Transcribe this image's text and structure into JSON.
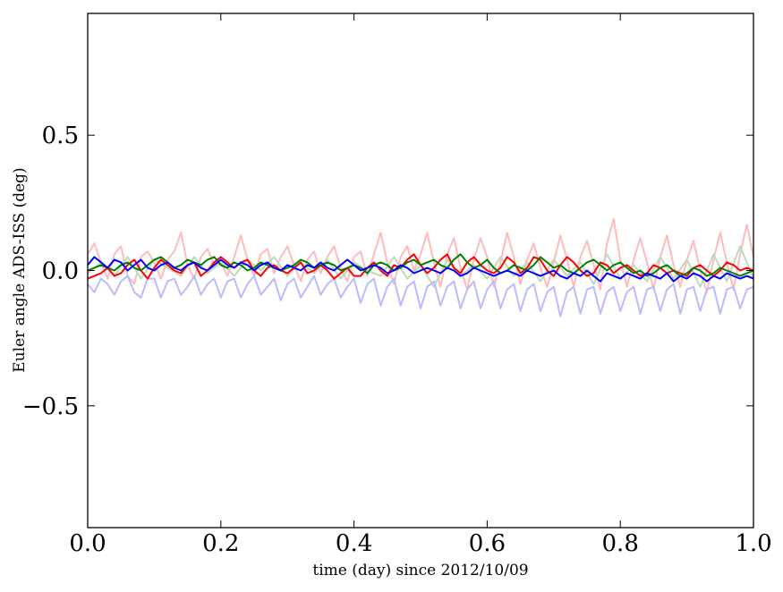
{
  "chart_data": {
    "type": "line",
    "title": "",
    "xlabel": "time (day) since 2012/10/09",
    "ylabel": "Euler angle ADS-ISS (deg)",
    "xlim": [
      0.0,
      1.0
    ],
    "ylim": [
      -0.95,
      0.95
    ],
    "x_ticks": [
      "0.0",
      "0.2",
      "0.4",
      "0.6",
      "0.8",
      "1.0"
    ],
    "y_ticks": [
      "0.5",
      "0.0",
      "−0.5"
    ],
    "grid": false,
    "legend": "none",
    "series": [
      {
        "color": "#ffbbbb",
        "opacity": 1,
        "x": [
          0.0,
          0.01,
          0.02,
          0.03,
          0.04,
          0.05,
          0.06,
          0.07,
          0.08,
          0.09,
          0.1,
          0.11,
          0.12,
          0.13,
          0.14,
          0.15,
          0.16,
          0.17,
          0.18,
          0.19,
          0.2,
          0.21,
          0.22,
          0.23,
          0.24,
          0.25,
          0.26,
          0.27,
          0.28,
          0.29,
          0.3,
          0.31,
          0.32,
          0.33,
          0.34,
          0.35,
          0.36,
          0.37,
          0.38,
          0.39,
          0.4,
          0.41,
          0.42,
          0.43,
          0.44,
          0.45,
          0.46,
          0.47,
          0.48,
          0.49,
          0.5,
          0.51,
          0.52,
          0.53,
          0.54,
          0.55,
          0.56,
          0.57,
          0.58,
          0.59,
          0.6,
          0.61,
          0.62,
          0.63,
          0.64,
          0.65,
          0.66,
          0.67,
          0.68,
          0.69,
          0.7,
          0.71,
          0.72,
          0.73,
          0.74,
          0.75,
          0.76,
          0.77,
          0.78,
          0.79,
          0.8,
          0.81,
          0.82,
          0.83,
          0.84,
          0.85,
          0.86,
          0.87,
          0.88,
          0.89,
          0.9,
          0.91,
          0.92,
          0.93,
          0.94,
          0.95,
          0.96,
          0.97,
          0.98,
          0.99,
          1.0
        ],
        "y": [
          0.06,
          0.1,
          0.03,
          -0.03,
          0.06,
          0.09,
          -0.02,
          -0.05,
          0.05,
          0.07,
          0.03,
          -0.03,
          0.04,
          0.07,
          0.14,
          0.02,
          -0.03,
          0.05,
          0.08,
          0.02,
          0.03,
          -0.02,
          0.05,
          0.13,
          0.04,
          -0.02,
          0.06,
          0.08,
          -0.01,
          0.05,
          0.09,
          0.02,
          -0.04,
          0.04,
          0.07,
          -0.01,
          0.05,
          0.09,
          0.01,
          -0.04,
          0.05,
          0.07,
          -0.02,
          0.06,
          0.14,
          0.03,
          -0.05,
          0.05,
          0.09,
          0.0,
          0.06,
          0.14,
          0.03,
          -0.06,
          0.06,
          0.12,
          0.01,
          -0.07,
          0.04,
          0.12,
          0.05,
          -0.06,
          0.03,
          0.14,
          0.05,
          -0.05,
          0.04,
          0.1,
          0.01,
          -0.06,
          0.03,
          0.13,
          0.04,
          -0.06,
          0.05,
          0.11,
          0.02,
          -0.07,
          0.1,
          0.19,
          0.04,
          -0.06,
          0.04,
          0.12,
          0.03,
          -0.07,
          0.05,
          0.13,
          0.02,
          -0.06,
          0.04,
          0.11,
          0.0,
          -0.08,
          0.04,
          0.14,
          0.03,
          -0.07,
          0.06,
          0.17,
          0.05
        ]
      },
      {
        "color": "#bbdbbb",
        "opacity": 1,
        "x": [
          0.0,
          0.02,
          0.04,
          0.06,
          0.08,
          0.1,
          0.12,
          0.14,
          0.16,
          0.18,
          0.2,
          0.22,
          0.24,
          0.26,
          0.28,
          0.3,
          0.32,
          0.34,
          0.36,
          0.38,
          0.4,
          0.42,
          0.44,
          0.46,
          0.48,
          0.5,
          0.52,
          0.54,
          0.56,
          0.58,
          0.6,
          0.62,
          0.64,
          0.66,
          0.68,
          0.7,
          0.72,
          0.74,
          0.76,
          0.78,
          0.8,
          0.82,
          0.84,
          0.86,
          0.88,
          0.9,
          0.92,
          0.94,
          0.96,
          0.98,
          1.0
        ],
        "y": [
          -0.01,
          0.03,
          -0.02,
          0.05,
          -0.03,
          0.04,
          0.01,
          -0.02,
          0.05,
          -0.01,
          0.03,
          -0.02,
          0.04,
          0.0,
          0.05,
          -0.02,
          0.03,
          -0.01,
          0.04,
          -0.03,
          0.03,
          0.0,
          -0.02,
          0.05,
          -0.03,
          0.02,
          -0.06,
          0.04,
          -0.02,
          0.02,
          -0.03,
          0.05,
          -0.02,
          0.03,
          -0.04,
          0.04,
          -0.02,
          0.03,
          -0.05,
          0.06,
          -0.03,
          0.02,
          -0.04,
          0.05,
          -0.03,
          0.04,
          -0.06,
          0.06,
          -0.04,
          0.09,
          -0.03
        ]
      },
      {
        "color": "#bbbbff",
        "opacity": 1,
        "x": [
          0.0,
          0.01,
          0.02,
          0.03,
          0.04,
          0.05,
          0.06,
          0.07,
          0.08,
          0.09,
          0.1,
          0.11,
          0.12,
          0.13,
          0.14,
          0.15,
          0.16,
          0.17,
          0.18,
          0.19,
          0.2,
          0.21,
          0.22,
          0.23,
          0.24,
          0.25,
          0.26,
          0.27,
          0.28,
          0.29,
          0.3,
          0.31,
          0.32,
          0.33,
          0.34,
          0.35,
          0.36,
          0.37,
          0.38,
          0.39,
          0.4,
          0.41,
          0.42,
          0.43,
          0.44,
          0.45,
          0.46,
          0.47,
          0.48,
          0.49,
          0.5,
          0.51,
          0.52,
          0.53,
          0.54,
          0.55,
          0.56,
          0.57,
          0.58,
          0.59,
          0.6,
          0.61,
          0.62,
          0.63,
          0.64,
          0.65,
          0.66,
          0.67,
          0.68,
          0.69,
          0.7,
          0.71,
          0.72,
          0.73,
          0.74,
          0.75,
          0.76,
          0.77,
          0.78,
          0.79,
          0.8,
          0.81,
          0.82,
          0.83,
          0.84,
          0.85,
          0.86,
          0.87,
          0.88,
          0.89,
          0.9,
          0.91,
          0.92,
          0.93,
          0.94,
          0.95,
          0.96,
          0.97,
          0.98,
          0.99,
          1.0
        ],
        "y": [
          -0.05,
          -0.08,
          -0.03,
          -0.05,
          -0.09,
          -0.04,
          -0.02,
          -0.08,
          -0.1,
          -0.03,
          -0.03,
          -0.1,
          -0.04,
          -0.03,
          -0.09,
          -0.06,
          -0.02,
          -0.09,
          -0.05,
          -0.03,
          -0.1,
          -0.04,
          -0.03,
          -0.1,
          -0.05,
          -0.02,
          -0.09,
          -0.06,
          -0.03,
          -0.11,
          -0.05,
          -0.03,
          -0.1,
          -0.06,
          -0.02,
          -0.09,
          -0.05,
          -0.03,
          -0.1,
          -0.06,
          -0.03,
          -0.12,
          -0.05,
          -0.03,
          -0.13,
          -0.06,
          -0.03,
          -0.13,
          -0.06,
          -0.04,
          -0.14,
          -0.06,
          -0.04,
          -0.13,
          -0.06,
          -0.04,
          -0.14,
          -0.07,
          -0.04,
          -0.14,
          -0.07,
          -0.04,
          -0.14,
          -0.07,
          -0.05,
          -0.15,
          -0.07,
          -0.05,
          -0.15,
          -0.08,
          -0.06,
          -0.17,
          -0.08,
          -0.06,
          -0.16,
          -0.07,
          -0.06,
          -0.16,
          -0.08,
          -0.06,
          -0.15,
          -0.08,
          -0.06,
          -0.16,
          -0.07,
          -0.06,
          -0.15,
          -0.07,
          -0.05,
          -0.16,
          -0.07,
          -0.06,
          -0.15,
          -0.07,
          -0.06,
          -0.16,
          -0.07,
          -0.06,
          -0.14,
          -0.07,
          -0.06
        ]
      },
      {
        "color": "#ff0000",
        "opacity": 1,
        "x": [
          0.0,
          0.01,
          0.02,
          0.03,
          0.04,
          0.05,
          0.06,
          0.07,
          0.08,
          0.09,
          0.1,
          0.11,
          0.12,
          0.13,
          0.14,
          0.15,
          0.16,
          0.17,
          0.18,
          0.19,
          0.2,
          0.21,
          0.22,
          0.23,
          0.24,
          0.25,
          0.26,
          0.27,
          0.28,
          0.29,
          0.3,
          0.31,
          0.32,
          0.33,
          0.34,
          0.35,
          0.36,
          0.37,
          0.38,
          0.39,
          0.4,
          0.41,
          0.42,
          0.43,
          0.44,
          0.45,
          0.46,
          0.47,
          0.48,
          0.49,
          0.5,
          0.51,
          0.52,
          0.53,
          0.54,
          0.55,
          0.56,
          0.57,
          0.58,
          0.59,
          0.6,
          0.61,
          0.62,
          0.63,
          0.64,
          0.65,
          0.66,
          0.67,
          0.68,
          0.69,
          0.7,
          0.71,
          0.72,
          0.73,
          0.74,
          0.75,
          0.76,
          0.77,
          0.78,
          0.79,
          0.8,
          0.81,
          0.82,
          0.83,
          0.84,
          0.85,
          0.86,
          0.87,
          0.88,
          0.89,
          0.9,
          0.91,
          0.92,
          0.93,
          0.94,
          0.95,
          0.96,
          0.97,
          0.98,
          0.99,
          1.0
        ],
        "y": [
          -0.03,
          -0.02,
          -0.01,
          0.01,
          -0.02,
          -0.01,
          0.02,
          0.04,
          0.0,
          -0.03,
          0.01,
          0.04,
          0.02,
          0.0,
          -0.01,
          0.02,
          0.03,
          -0.02,
          0.0,
          0.03,
          0.05,
          0.03,
          0.01,
          0.03,
          0.04,
          0.0,
          -0.02,
          0.01,
          0.02,
          0.0,
          -0.01,
          0.01,
          0.03,
          -0.01,
          0.0,
          0.02,
          0.0,
          -0.03,
          -0.01,
          0.01,
          -0.02,
          -0.02,
          0.01,
          0.03,
          0.0,
          -0.02,
          0.02,
          0.01,
          0.04,
          0.06,
          0.02,
          -0.01,
          0.01,
          0.04,
          0.06,
          0.01,
          -0.01,
          0.03,
          0.05,
          0.02,
          0.0,
          -0.01,
          0.01,
          0.05,
          0.03,
          -0.01,
          0.01,
          0.05,
          0.04,
          0.0,
          -0.02,
          0.02,
          0.05,
          0.03,
          0.0,
          -0.02,
          -0.01,
          0.03,
          0.02,
          -0.01,
          0.01,
          0.02,
          0.0,
          -0.02,
          -0.01,
          0.02,
          0.01,
          -0.01,
          0.0,
          -0.01,
          -0.02,
          0.01,
          0.02,
          0.0,
          -0.02,
          0.0,
          0.03,
          0.02,
          0.0,
          0.01,
          0.0
        ]
      },
      {
        "color": "#008000",
        "opacity": 1,
        "x": [
          0.0,
          0.01,
          0.02,
          0.03,
          0.04,
          0.05,
          0.06,
          0.07,
          0.08,
          0.09,
          0.1,
          0.11,
          0.12,
          0.13,
          0.14,
          0.15,
          0.16,
          0.17,
          0.18,
          0.19,
          0.2,
          0.21,
          0.22,
          0.23,
          0.24,
          0.25,
          0.26,
          0.27,
          0.28,
          0.29,
          0.3,
          0.31,
          0.32,
          0.33,
          0.34,
          0.35,
          0.36,
          0.37,
          0.38,
          0.39,
          0.4,
          0.41,
          0.42,
          0.43,
          0.44,
          0.45,
          0.46,
          0.47,
          0.48,
          0.49,
          0.5,
          0.51,
          0.52,
          0.53,
          0.54,
          0.55,
          0.56,
          0.57,
          0.58,
          0.59,
          0.6,
          0.61,
          0.62,
          0.63,
          0.64,
          0.65,
          0.66,
          0.67,
          0.68,
          0.69,
          0.7,
          0.71,
          0.72,
          0.73,
          0.74,
          0.75,
          0.76,
          0.77,
          0.78,
          0.79,
          0.8,
          0.81,
          0.82,
          0.83,
          0.84,
          0.85,
          0.86,
          0.87,
          0.88,
          0.89,
          0.9,
          0.91,
          0.92,
          0.93,
          0.94,
          0.95,
          0.96,
          0.97,
          0.98,
          0.99,
          1.0
        ],
        "y": [
          0.0,
          0.01,
          0.02,
          0.01,
          0.0,
          0.02,
          0.03,
          0.01,
          0.0,
          0.02,
          0.04,
          0.05,
          0.03,
          0.01,
          0.02,
          0.04,
          0.03,
          0.02,
          0.04,
          0.05,
          0.02,
          0.01,
          0.03,
          0.02,
          0.0,
          0.01,
          0.03,
          0.02,
          0.01,
          0.0,
          0.01,
          0.02,
          0.04,
          0.03,
          0.01,
          0.02,
          0.03,
          0.02,
          0.0,
          0.01,
          0.02,
          0.01,
          -0.01,
          0.02,
          0.03,
          0.02,
          0.0,
          0.01,
          0.03,
          0.04,
          0.02,
          0.03,
          0.04,
          0.02,
          0.01,
          0.04,
          0.06,
          0.03,
          0.01,
          0.02,
          0.04,
          0.01,
          -0.01,
          0.0,
          0.02,
          0.01,
          0.0,
          0.02,
          0.05,
          0.03,
          0.01,
          0.02,
          0.0,
          -0.01,
          0.01,
          0.03,
          0.04,
          0.02,
          0.0,
          0.02,
          0.03,
          0.01,
          -0.01,
          0.0,
          -0.02,
          -0.01,
          0.01,
          0.02,
          0.0,
          -0.02,
          -0.01,
          0.01,
          0.0,
          -0.02,
          -0.01,
          0.01,
          0.0,
          -0.01,
          -0.02,
          -0.01,
          0.0
        ]
      },
      {
        "color": "#0000ff",
        "opacity": 1,
        "x": [
          0.0,
          0.01,
          0.02,
          0.03,
          0.04,
          0.05,
          0.06,
          0.07,
          0.08,
          0.09,
          0.1,
          0.11,
          0.12,
          0.13,
          0.14,
          0.15,
          0.16,
          0.17,
          0.18,
          0.19,
          0.2,
          0.21,
          0.22,
          0.23,
          0.24,
          0.25,
          0.26,
          0.27,
          0.28,
          0.29,
          0.3,
          0.31,
          0.32,
          0.33,
          0.34,
          0.35,
          0.36,
          0.37,
          0.38,
          0.39,
          0.4,
          0.41,
          0.42,
          0.43,
          0.44,
          0.45,
          0.46,
          0.47,
          0.48,
          0.49,
          0.5,
          0.51,
          0.52,
          0.53,
          0.54,
          0.55,
          0.56,
          0.57,
          0.58,
          0.59,
          0.6,
          0.61,
          0.62,
          0.63,
          0.64,
          0.65,
          0.66,
          0.67,
          0.68,
          0.69,
          0.7,
          0.71,
          0.72,
          0.73,
          0.74,
          0.75,
          0.76,
          0.77,
          0.78,
          0.79,
          0.8,
          0.81,
          0.82,
          0.83,
          0.84,
          0.85,
          0.86,
          0.87,
          0.88,
          0.89,
          0.9,
          0.91,
          0.92,
          0.93,
          0.94,
          0.95,
          0.96,
          0.97,
          0.98,
          0.99,
          1.0
        ],
        "y": [
          0.02,
          0.05,
          0.03,
          0.01,
          0.04,
          0.03,
          0.0,
          0.02,
          0.04,
          0.01,
          0.0,
          0.02,
          0.03,
          0.01,
          0.0,
          0.02,
          0.03,
          0.01,
          0.0,
          0.02,
          0.04,
          0.02,
          0.01,
          0.03,
          0.02,
          0.0,
          0.02,
          0.03,
          0.01,
          0.0,
          0.02,
          0.01,
          0.0,
          0.02,
          0.01,
          0.03,
          0.01,
          0.0,
          0.02,
          0.04,
          0.02,
          0.0,
          0.01,
          0.02,
          0.01,
          -0.01,
          0.0,
          0.02,
          0.01,
          -0.01,
          0.0,
          0.01,
          0.0,
          -0.01,
          0.01,
          0.0,
          -0.02,
          -0.01,
          0.01,
          0.0,
          -0.01,
          -0.02,
          -0.01,
          0.0,
          -0.01,
          -0.02,
          0.0,
          -0.01,
          -0.02,
          -0.01,
          0.0,
          -0.02,
          -0.03,
          -0.01,
          -0.02,
          0.0,
          -0.02,
          -0.04,
          -0.01,
          -0.02,
          -0.03,
          -0.01,
          -0.02,
          -0.03,
          -0.01,
          -0.02,
          -0.03,
          -0.01,
          -0.04,
          -0.02,
          -0.03,
          -0.01,
          -0.02,
          -0.04,
          -0.02,
          -0.03,
          -0.01,
          -0.02,
          -0.03,
          -0.02,
          -0.03
        ]
      }
    ]
  }
}
